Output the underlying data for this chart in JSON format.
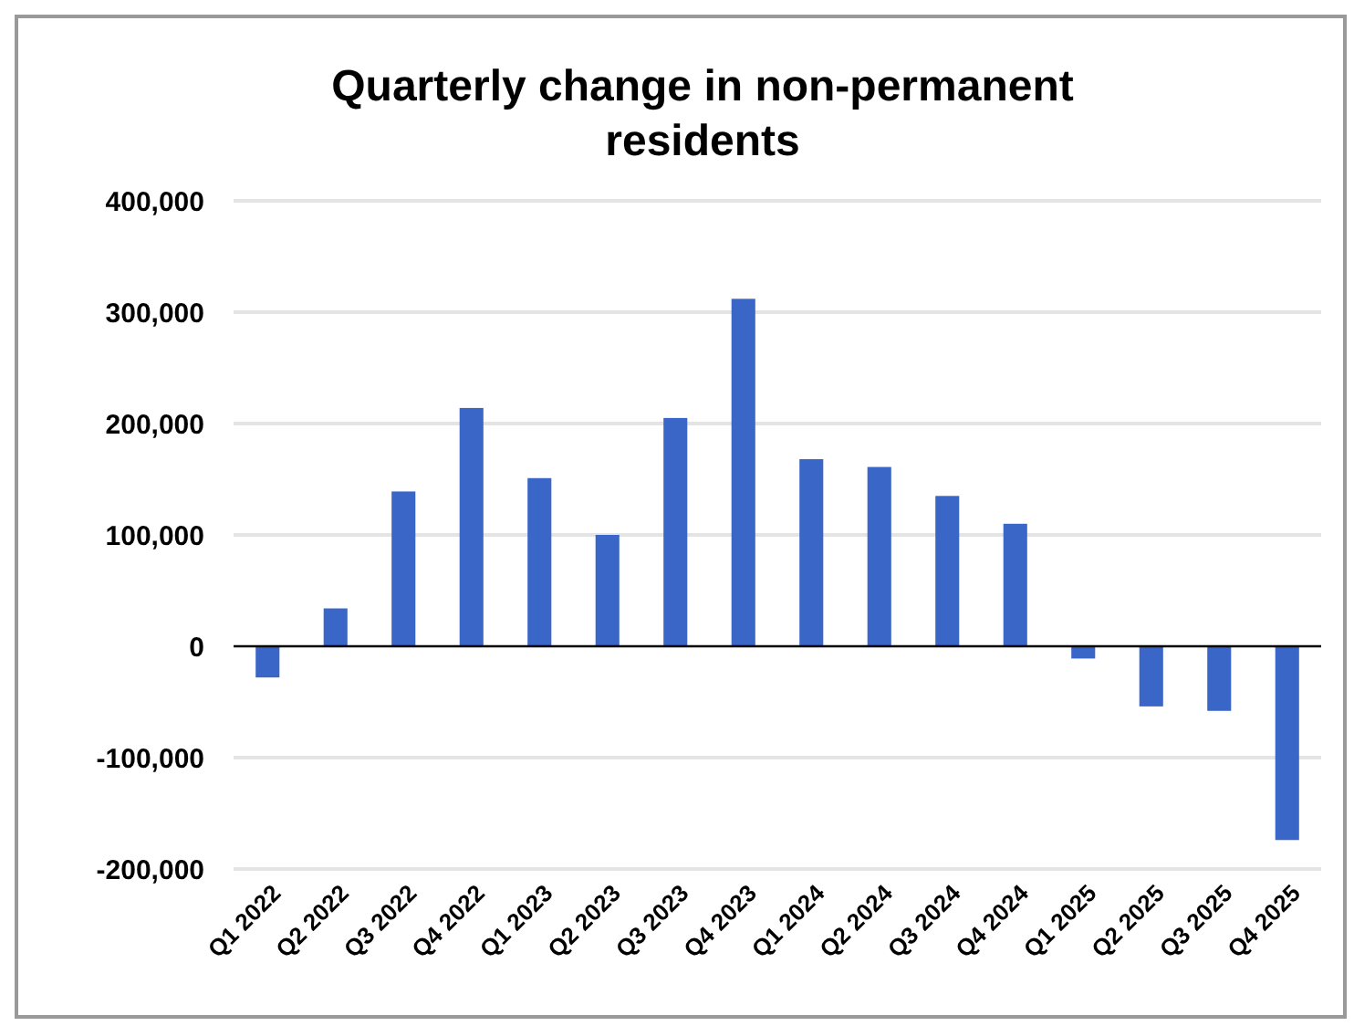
{
  "chart_data": {
    "type": "bar",
    "title": "Quarterly change in non-permanent residents",
    "categories": [
      "Q1 2022",
      "Q2 2022",
      "Q3 2022",
      "Q4 2022",
      "Q1 2023",
      "Q2 2023",
      "Q3 2023",
      "Q4 2023",
      "Q1 2024",
      "Q2 2024",
      "Q3 2024",
      "Q4 2024",
      "Q1 2025",
      "Q2 2025",
      "Q3 2025",
      "Q4 2025"
    ],
    "values": [
      -28000,
      34000,
      139000,
      214000,
      151000,
      100000,
      205000,
      312000,
      168000,
      161000,
      135000,
      110000,
      -11000,
      -54000,
      -58000,
      -174000
    ],
    "color": "#3a66c8",
    "ylim": [
      -200000,
      400000
    ],
    "yticks": [
      {
        "value": -200000,
        "label": "-200,000"
      },
      {
        "value": -100000,
        "label": "-100,000"
      },
      0,
      {
        "value": 100000,
        "label": "100,000"
      },
      {
        "value": 200000,
        "label": "200,000"
      },
      {
        "value": 300000,
        "label": "300,000"
      },
      {
        "value": 400000,
        "label": "400,000"
      }
    ],
    "grid": "y"
  }
}
